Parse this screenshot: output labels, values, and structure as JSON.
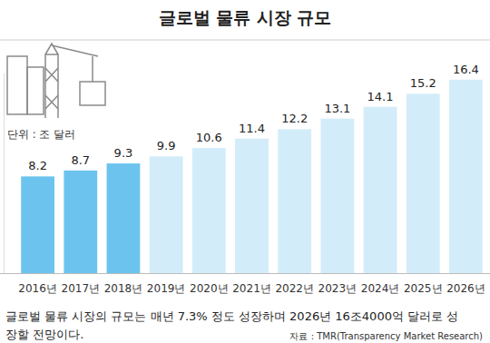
{
  "chart_data": {
    "type": "bar",
    "title": "글로벌 물류 시장 규모",
    "subtitle": "단위 : 조 달러",
    "categories": [
      "2016년",
      "2017년",
      "2018년",
      "2019년",
      "2020년",
      "2021년",
      "2022년",
      "2023년",
      "2024년",
      "2025년",
      "2026년"
    ],
    "values": [
      8.2,
      8.7,
      9.3,
      9.9,
      10.6,
      11.4,
      12.2,
      13.1,
      14.1,
      15.2,
      16.4
    ],
    "colors": [
      "#6cc4ee",
      "#6cc4ee",
      "#6cc4ee",
      "#d3ecf9",
      "#d3ecf9",
      "#d3ecf9",
      "#d3ecf9",
      "#d3ecf9",
      "#d3ecf9",
      "#d3ecf9",
      "#d3ecf9"
    ],
    "ylim": [
      0,
      17
    ],
    "data_labels": true,
    "tick_labels": "x",
    "grid": false,
    "caption": [
      "글로벌 물류 시장의 규모는 매년 7.3% 정도 성장하며 2026년 16조4000억 달러로 성",
      "장할 전망이다."
    ],
    "source": "자료 : TMR(Transparency Market Research)"
  }
}
